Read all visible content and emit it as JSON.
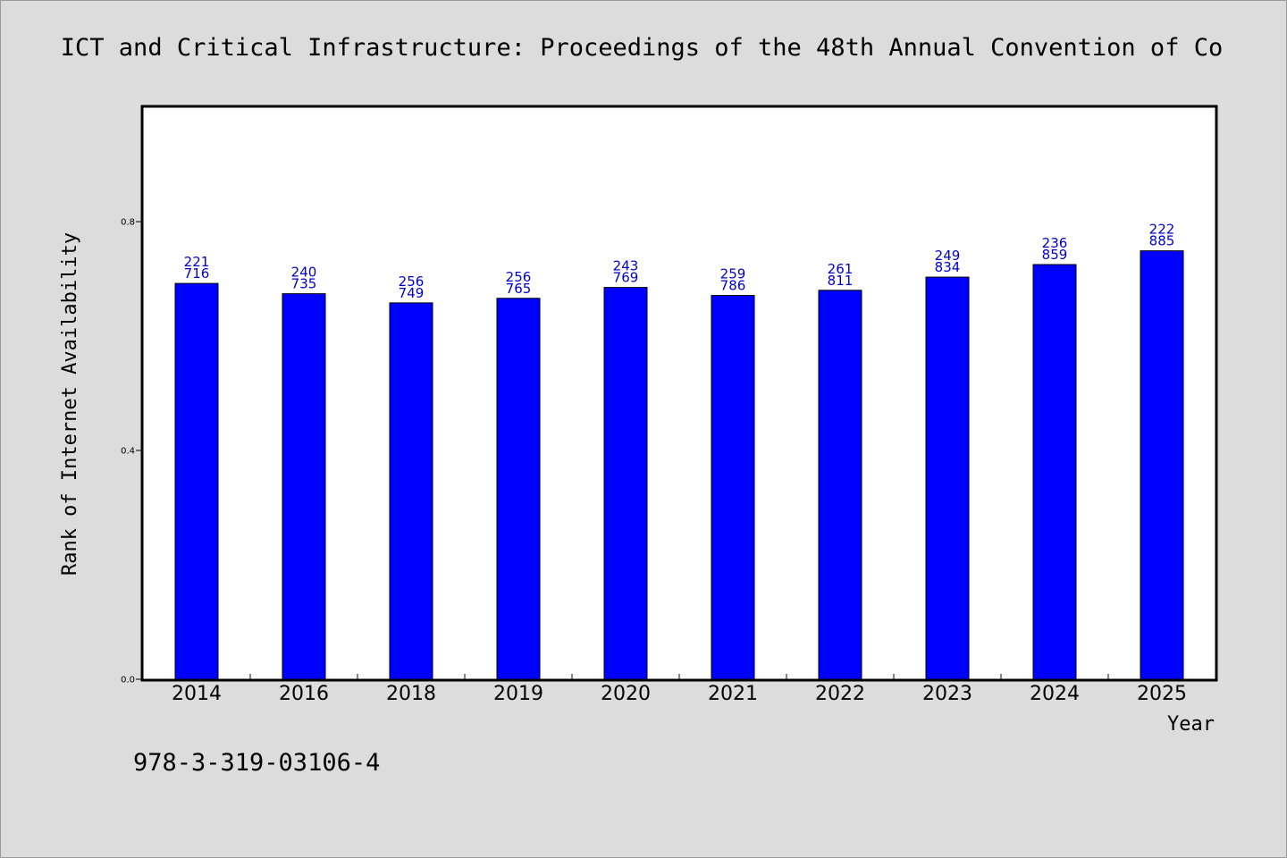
{
  "chart_data": {
    "type": "bar",
    "title": "ICT and Critical Infrastructure: Proceedings of the 48th Annual Convention of Co",
    "xlabel": "Year",
    "ylabel": "Rank of Internet Availability",
    "categories": [
      "2014",
      "2016",
      "2018",
      "2019",
      "2020",
      "2021",
      "2022",
      "2023",
      "2024",
      "2025"
    ],
    "values": [
      0.692,
      0.674,
      0.658,
      0.666,
      0.685,
      0.671,
      0.68,
      0.703,
      0.725,
      0.749
    ],
    "labels_top": [
      "221",
      "240",
      "256",
      "256",
      "243",
      "259",
      "261",
      "249",
      "236",
      "222"
    ],
    "labels_bottom": [
      "716",
      "735",
      "749",
      "765",
      "769",
      "786",
      "811",
      "834",
      "859",
      "885"
    ],
    "yticks": [
      "0.0",
      "0.4",
      "0.8"
    ],
    "ytick_values": [
      0.0,
      0.4,
      0.8
    ],
    "ylim": [
      0,
      1.0
    ],
    "grid": false,
    "colors": {
      "bar": "#0000ff",
      "label": "#0000cc",
      "background": "#dcdcdc",
      "plot": "#ffffff"
    }
  },
  "footer": {
    "text": "978-3-319-03106-4"
  }
}
